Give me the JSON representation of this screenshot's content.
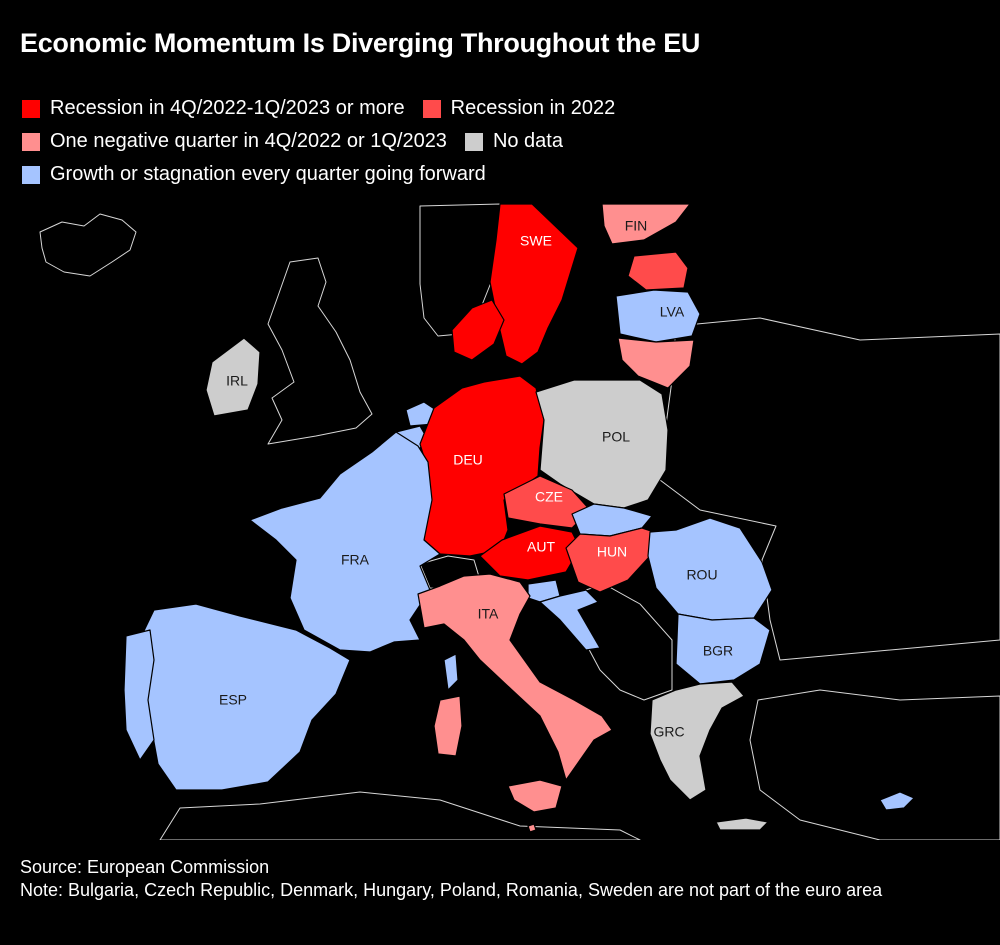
{
  "title": "Economic Momentum Is Diverging Throughout the EU",
  "colors": {
    "recession_4q_1q": "#ff0000",
    "recession_2022": "#ff4b4b",
    "one_negative": "#ff8f8f",
    "no_data": "#cdcdcd",
    "growth": "#a5c4ff"
  },
  "legend": {
    "recession_4q_1q": "Recession in 4Q/2022-1Q/2023 or more",
    "recession_2022": "Recession in 2022",
    "one_negative": "One negative quarter in 4Q/2022 or 1Q/2023",
    "no_data": "No data",
    "growth": "Growth or stagnation every quarter going forward"
  },
  "countries": {
    "SWE": {
      "label": "SWE",
      "category": "recession_4q_1q"
    },
    "FIN": {
      "label": "FIN",
      "category": "one_negative"
    },
    "LVA": {
      "label": "LVA",
      "category": "growth"
    },
    "IRL": {
      "label": "IRL",
      "category": "no_data"
    },
    "POL": {
      "label": "POL",
      "category": "no_data"
    },
    "DEU": {
      "label": "DEU",
      "category": "recession_4q_1q"
    },
    "CZE": {
      "label": "CZE",
      "category": "recession_2022"
    },
    "FRA": {
      "label": "FRA",
      "category": "growth"
    },
    "AUT": {
      "label": "AUT",
      "category": "recession_4q_1q"
    },
    "HUN": {
      "label": "HUN",
      "category": "recession_2022"
    },
    "ROU": {
      "label": "ROU",
      "category": "growth"
    },
    "ITA": {
      "label": "ITA",
      "category": "one_negative"
    },
    "BGR": {
      "label": "BGR",
      "category": "growth"
    },
    "ESP": {
      "label": "ESP",
      "category": "growth"
    },
    "GRC": {
      "label": "GRC",
      "category": "no_data"
    },
    "DNK": {
      "category": "recession_4q_1q"
    },
    "EST": {
      "category": "recession_2022"
    },
    "LTU": {
      "category": "one_negative"
    },
    "NLD": {
      "category": "growth"
    },
    "BEL": {
      "category": "growth"
    },
    "SVK": {
      "category": "growth"
    },
    "SVN": {
      "category": "growth"
    },
    "HRV": {
      "category": "growth"
    },
    "PRT": {
      "category": "growth"
    },
    "LUX": {
      "category": "growth"
    },
    "CYP": {
      "category": "growth"
    },
    "MLT": {
      "category": "one_negative"
    }
  },
  "source": "Source: European Commission",
  "note": "Note: Bulgaria, Czech Republic, Denmark, Hungary, Poland, Romania, Sweden are not part of the euro area"
}
